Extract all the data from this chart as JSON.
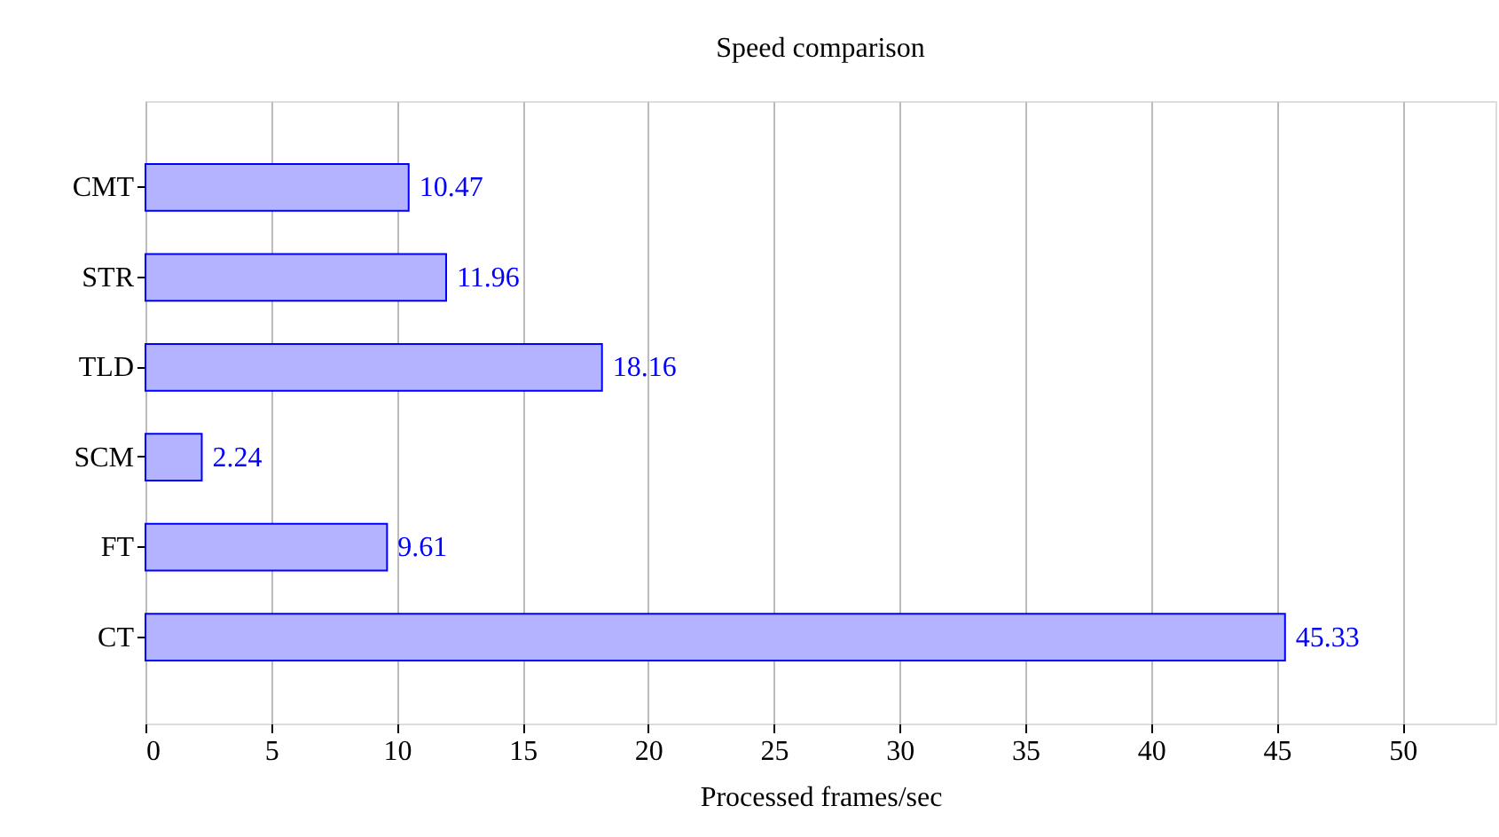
{
  "chart_data": {
    "type": "bar",
    "orientation": "horizontal",
    "title": "Speed comparison",
    "xlabel": "Processed frames/sec",
    "categories": [
      "CMT",
      "STR",
      "TLD",
      "SCM",
      "FT",
      "CT"
    ],
    "values": [
      10.47,
      11.96,
      18.16,
      2.24,
      9.61,
      45.33
    ],
    "color": "#b3b3ff",
    "data_labels": true,
    "xlim": [
      0,
      53.7
    ],
    "xticks": [
      0,
      5,
      10,
      15,
      20,
      25,
      30,
      35,
      40,
      45,
      50
    ],
    "grid": "x"
  }
}
